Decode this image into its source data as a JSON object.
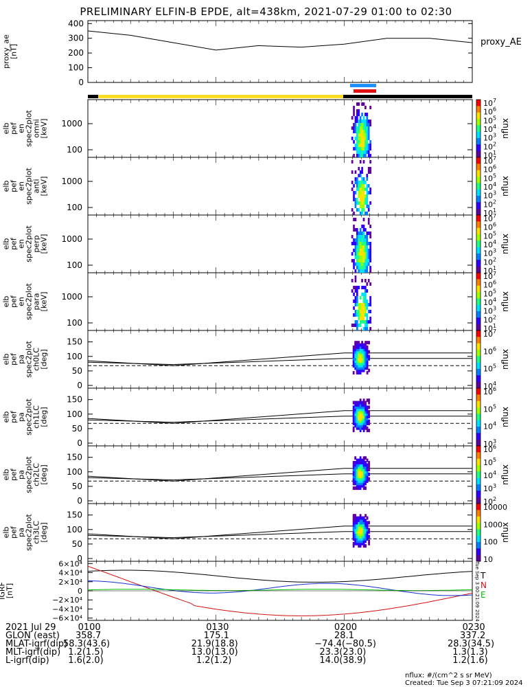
{
  "title": "PRELIMINARY ELFIN-B EPDE, alt=438km, 2021-07-29 01:00 to 02:30",
  "panels": [
    {
      "id": "proxy_ae",
      "ylabel": [
        "proxy_ae",
        "[nT]"
      ],
      "ticks": [
        "0",
        "100",
        "200",
        "300",
        "400"
      ],
      "ylim": [
        0,
        420
      ],
      "side_label": "proxy_AE"
    },
    {
      "id": "omni",
      "ylabel": [
        "elb",
        "pef",
        "en",
        "spec2plot",
        "omni",
        "[keV]"
      ],
      "ticks": [
        "100",
        "1000"
      ],
      "cbar": [
        "10",
        "10",
        "10",
        "10",
        "10",
        "10",
        "10"
      ],
      "cbar_exp": [
        "1",
        "2",
        "3",
        "4",
        "5",
        "6",
        "7"
      ],
      "cbar_label": "nflux"
    },
    {
      "id": "anti",
      "ylabel": [
        "elb",
        "pef",
        "en",
        "spec2plot",
        "anti",
        "[keV]"
      ],
      "ticks": [
        "100",
        "1000"
      ],
      "cbar": [
        "10",
        "10",
        "10",
        "10",
        "10",
        "10",
        "10"
      ],
      "cbar_exp": [
        "1",
        "2",
        "3",
        "4",
        "5",
        "6",
        "7"
      ],
      "cbar_label": "nflux"
    },
    {
      "id": "perp",
      "ylabel": [
        "elb",
        "pef",
        "en",
        "spec2plot",
        "perp",
        "[keV]"
      ],
      "ticks": [
        "100",
        "1000"
      ],
      "cbar": [
        "10",
        "10",
        "10",
        "10",
        "10",
        "10",
        "10"
      ],
      "cbar_exp": [
        "1",
        "2",
        "3",
        "4",
        "5",
        "6",
        "7"
      ],
      "cbar_label": "nflux"
    },
    {
      "id": "para",
      "ylabel": [
        "elb",
        "pef",
        "en",
        "spec2plot",
        "para",
        "[keV]"
      ],
      "ticks": [
        "100",
        "1000"
      ],
      "cbar": [
        "10",
        "10",
        "10",
        "10",
        "10",
        "10",
        "10"
      ],
      "cbar_exp": [
        "1",
        "2",
        "3",
        "4",
        "5",
        "6",
        "7"
      ],
      "cbar_label": "nflux"
    },
    {
      "id": "ch0LC",
      "ylabel": [
        "elb",
        "pef",
        "pa",
        "spec2plot",
        "ch0LC",
        "[deg]"
      ],
      "ticks": [
        "0",
        "50",
        "100",
        "150"
      ],
      "cbar": [
        "10",
        "10",
        "10",
        "10"
      ],
      "cbar_exp": [
        "4",
        "5",
        "6",
        "7"
      ],
      "cbar_label": "nflux"
    },
    {
      "id": "ch1LC",
      "ylabel": [
        "elb",
        "pef",
        "pa",
        "spec2plot",
        "ch1LC",
        "[deg]"
      ],
      "ticks": [
        "0",
        "50",
        "100",
        "150"
      ],
      "cbar": [
        "10",
        "10",
        "10",
        "10"
      ],
      "cbar_exp": [
        "3",
        "4",
        "5",
        "6"
      ],
      "cbar_label": "nflux"
    },
    {
      "id": "ch2LC",
      "ylabel": [
        "elb",
        "pef",
        "pa",
        "spec2plot",
        "ch2LC",
        "[deg]"
      ],
      "ticks": [
        "0",
        "50",
        "100",
        "150"
      ],
      "cbar": [
        "10",
        "10",
        "10",
        "10",
        "10"
      ],
      "cbar_exp": [
        "2",
        "3",
        "4",
        "5",
        "6"
      ],
      "cbar_label": "nflux"
    },
    {
      "id": "ch3LC",
      "ylabel": [
        "elb",
        "pef",
        "pa",
        "spec2plot",
        "ch3LC",
        "[deg]"
      ],
      "ticks": [
        "0",
        "50",
        "100",
        "150"
      ],
      "cbar": [
        "10",
        "100",
        "1000",
        "10000"
      ],
      "cbar_exp": [
        "",
        "",
        "",
        ""
      ],
      "cbar_label": "nflux"
    },
    {
      "id": "igrf",
      "ylabel": [
        "IGRF",
        "[nT]"
      ],
      "ticks": [
        "−6×10⁴",
        "−4×10⁴",
        "−2×10⁴",
        "0",
        "2×10⁴",
        "4×10⁴",
        "6×10⁴"
      ],
      "legend": [
        "T",
        "N",
        "E"
      ]
    }
  ],
  "colors": {
    "proxy": "#000000",
    "yellow": "#ffdd22",
    "blue": "#1e90ff",
    "red": "#e01010",
    "black": "#000000",
    "igrf_t": "#000000",
    "igrf_n": "#1030d0",
    "igrf_e": "#00c000",
    "igrf_r": "#d01010"
  },
  "footer": {
    "rows": [
      {
        "label": "2021 Jul 29",
        "v": [
          "0100",
          "0130",
          "0200",
          "0230"
        ]
      },
      {
        "label": "GLON (east)",
        "v": [
          "358.7",
          "175.1",
          "28.1",
          "337.2"
        ]
      },
      {
        "label": "MLAT-igrf(dip)",
        "v": [
          "58.3(43.6)",
          "21.9(18.8)",
          "−74.4(−80.5)",
          "28.3(34.5)"
        ]
      },
      {
        "label": "MLT-igrf(dip)",
        "v": [
          "1.2(1.5)",
          "13.0(13.0)",
          "23.3(23.0)",
          "1.3(1.3)"
        ]
      },
      {
        "label": "L-igrf(dip)",
        "v": [
          "1.6(2.0)",
          "1.2(1.2)",
          "14.0(38.9)",
          "1.2(1.6)"
        ]
      }
    ],
    "credit1": "nflux: #/(cm^2 s sr MeV)",
    "credit2": "Created: Tue Sep  3 07:21:09 2024",
    "sidenote": "Tue Sep  3 00:21:09 2024"
  },
  "chart_data": {
    "type": "heatmap",
    "x_time_range": [
      "01:00",
      "02:30"
    ],
    "proxy_ae": {
      "x": [
        "01:00",
        "01:10",
        "01:20",
        "01:30",
        "01:40",
        "01:50",
        "02:00",
        "02:10",
        "02:20",
        "02:30"
      ],
      "values": [
        350,
        320,
        270,
        220,
        250,
        240,
        260,
        300,
        300,
        270
      ]
    },
    "science_window": [
      "02:02",
      "02:06"
    ]
  }
}
